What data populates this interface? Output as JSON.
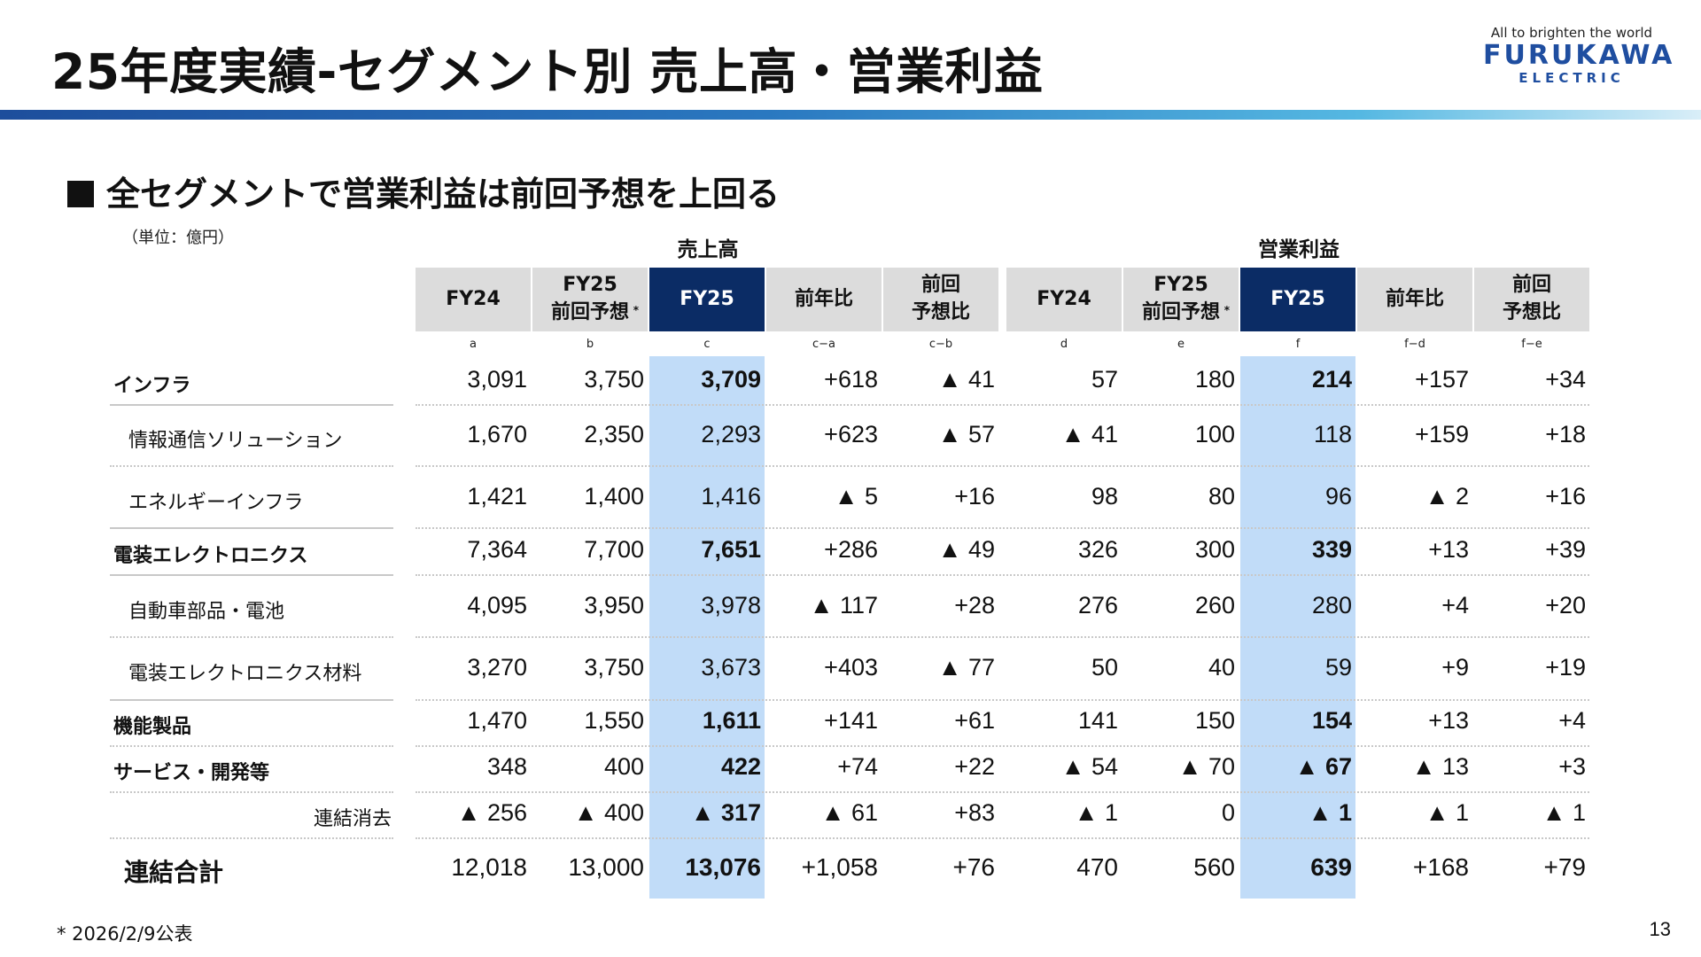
{
  "title": "25年度実績-セグメント別 売上高・営業利益",
  "logo": {
    "tagline": "All to brighten the world",
    "name": "FURUKAWA",
    "sub": "ELECTRIC"
  },
  "subtitle": "全セグメントで営業利益は前回予想を上回る",
  "unit": "（単位：億円）",
  "groups": [
    "売上高",
    "営業利益"
  ],
  "headers": [
    {
      "line1": "FY24",
      "line2": "",
      "asterisk": ""
    },
    {
      "line1": "FY25",
      "line2": "前回予想",
      "asterisk": "*"
    },
    {
      "line1": "FY25",
      "line2": "",
      "asterisk": ""
    },
    {
      "line1": "前年比",
      "line2": "",
      "asterisk": ""
    },
    {
      "line1": "前回",
      "line2": "予想比",
      "asterisk": ""
    },
    {
      "line1": "FY24",
      "line2": "",
      "asterisk": ""
    },
    {
      "line1": "FY25",
      "line2": "前回予想",
      "asterisk": "*"
    },
    {
      "line1": "FY25",
      "line2": "",
      "asterisk": ""
    },
    {
      "line1": "前年比",
      "line2": "",
      "asterisk": ""
    },
    {
      "line1": "前回",
      "line2": "予想比",
      "asterisk": ""
    }
  ],
  "codes": [
    "a",
    "b",
    "c",
    "c−a",
    "c−b",
    "d",
    "e",
    "f",
    "f−d",
    "f−e"
  ],
  "rows": [
    {
      "label": "インフラ",
      "values": [
        "3,091",
        "3,750",
        "3,709",
        "+618",
        "▲ 41",
        "57",
        "180",
        "214",
        "+157",
        "+34"
      ]
    },
    {
      "label": "情報通信ソリューション",
      "values": [
        "1,670",
        "2,350",
        "2,293",
        "+623",
        "▲ 57",
        "▲ 41",
        "100",
        "118",
        "+159",
        "+18"
      ]
    },
    {
      "label": "エネルギーインフラ",
      "values": [
        "1,421",
        "1,400",
        "1,416",
        "▲ 5",
        "+16",
        "98",
        "80",
        "96",
        "▲ 2",
        "+16"
      ]
    },
    {
      "label": "電装エレクトロニクス",
      "values": [
        "7,364",
        "7,700",
        "7,651",
        "+286",
        "▲ 49",
        "326",
        "300",
        "339",
        "+13",
        "+39"
      ]
    },
    {
      "label": "自動車部品・電池",
      "values": [
        "4,095",
        "3,950",
        "3,978",
        "▲ 117",
        "+28",
        "276",
        "260",
        "280",
        "+4",
        "+20"
      ]
    },
    {
      "label": "電装エレクトロニクス材料",
      "values": [
        "3,270",
        "3,750",
        "3,673",
        "+403",
        "▲ 77",
        "50",
        "40",
        "59",
        "+9",
        "+19"
      ]
    },
    {
      "label": "機能製品",
      "values": [
        "1,470",
        "1,550",
        "1,611",
        "+141",
        "+61",
        "141",
        "150",
        "154",
        "+13",
        "+4"
      ]
    },
    {
      "label": "サービス・開発等",
      "values": [
        "348",
        "400",
        "422",
        "+74",
        "+22",
        "▲ 54",
        "▲ 70",
        "▲ 67",
        "▲ 13",
        "+3"
      ]
    },
    {
      "label": "連結消去",
      "values": [
        "▲ 256",
        "▲ 400",
        "▲ 317",
        "▲ 61",
        "+83",
        "▲ 1",
        "0",
        "▲ 1",
        "▲ 1",
        "▲ 1"
      ]
    },
    {
      "label": "連結合計",
      "values": [
        "12,018",
        "13,000",
        "13,076",
        "+1,058",
        "+76",
        "470",
        "560",
        "639",
        "+168",
        "+79"
      ]
    }
  ],
  "footnote": "* 2026/2/9公表",
  "page_number": "13"
}
